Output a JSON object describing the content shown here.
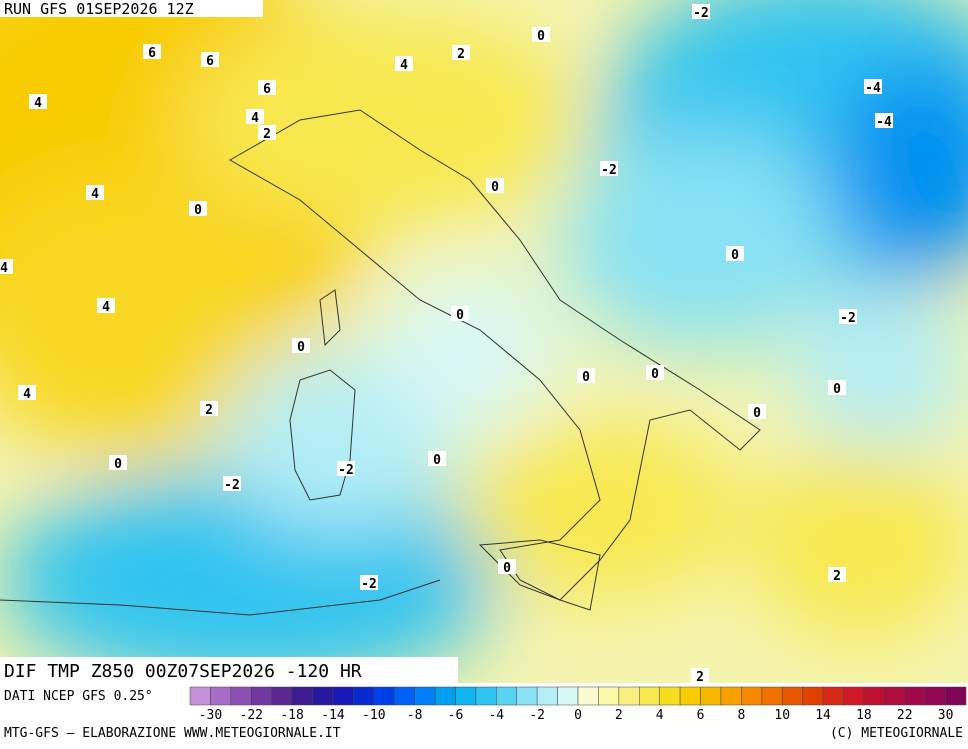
{
  "header": {
    "run": "RUN GFS 01SEP2026 12Z",
    "title": "DIF TMP Z850 00Z07SEP2026 -120 HR",
    "source": "DATI NCEP GFS 0.25°",
    "credit_left": "MTG-GFS – ELABORAZIONE WWW.METEOGIORNALE.IT",
    "credit_right": "(C) METEOGIORNALE"
  },
  "map": {
    "contour_labels": [
      "6",
      "6",
      "6",
      "4",
      "4",
      "2",
      "4",
      "0",
      "4",
      "4",
      "0",
      "4",
      "2",
      "0",
      "-2",
      "-2",
      "0",
      "0",
      "0",
      "0",
      "0",
      "0",
      "-2",
      "0",
      "-2",
      "0",
      "4",
      "2",
      "0",
      "-2",
      "-4",
      "-4",
      "2",
      "-2",
      "0",
      "2"
    ]
  },
  "legend": {
    "labels": [
      "-30",
      "-22",
      "-18",
      "-14",
      "-10",
      "-8",
      "-6",
      "-4",
      "-2",
      "0",
      "2",
      "4",
      "6",
      "8",
      "10",
      "14",
      "18",
      "22",
      "30"
    ],
    "colors": [
      "#c490d8",
      "#a86cc8",
      "#8c50b4",
      "#7038a0",
      "#582890",
      "#3c1c90",
      "#2818a0",
      "#1818b8",
      "#0828d0",
      "#0040e8",
      "#0060f8",
      "#0080f8",
      "#00a0f0",
      "#10b4f0",
      "#30c4f0",
      "#58d4f2",
      "#88e2f4",
      "#b4eef6",
      "#d8f8f8",
      "#fafad0",
      "#fafaa8",
      "#f8f080",
      "#f8e850",
      "#f8dc20",
      "#f8cc00",
      "#f8b800",
      "#f8a000",
      "#f88800",
      "#f07000",
      "#e85800",
      "#e04000",
      "#d82818",
      "#d01828",
      "#c01030",
      "#b00c40",
      "#a00848",
      "#900650",
      "#800458"
    ]
  }
}
